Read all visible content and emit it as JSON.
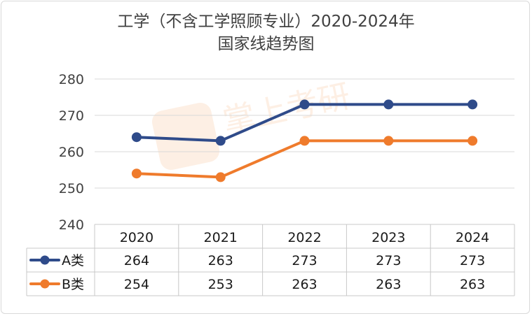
{
  "chart_data": {
    "type": "line",
    "title_line1": "工学（不含工学照顾专业）2020-2024年",
    "title_line2": "国家线趋势图",
    "categories": [
      "2020",
      "2021",
      "2022",
      "2023",
      "2024"
    ],
    "series": [
      {
        "name": "A类",
        "values": [
          264,
          263,
          273,
          273,
          273
        ],
        "color": "#2f4b8a"
      },
      {
        "name": "B类",
        "values": [
          254,
          253,
          263,
          263,
          263
        ],
        "color": "#ef7b2c"
      }
    ],
    "yticks": [
      "240",
      "250",
      "260",
      "270",
      "280"
    ],
    "ylim": [
      240,
      280
    ],
    "grid": true,
    "legend": "data-table-left",
    "watermark": "掌上考研"
  }
}
